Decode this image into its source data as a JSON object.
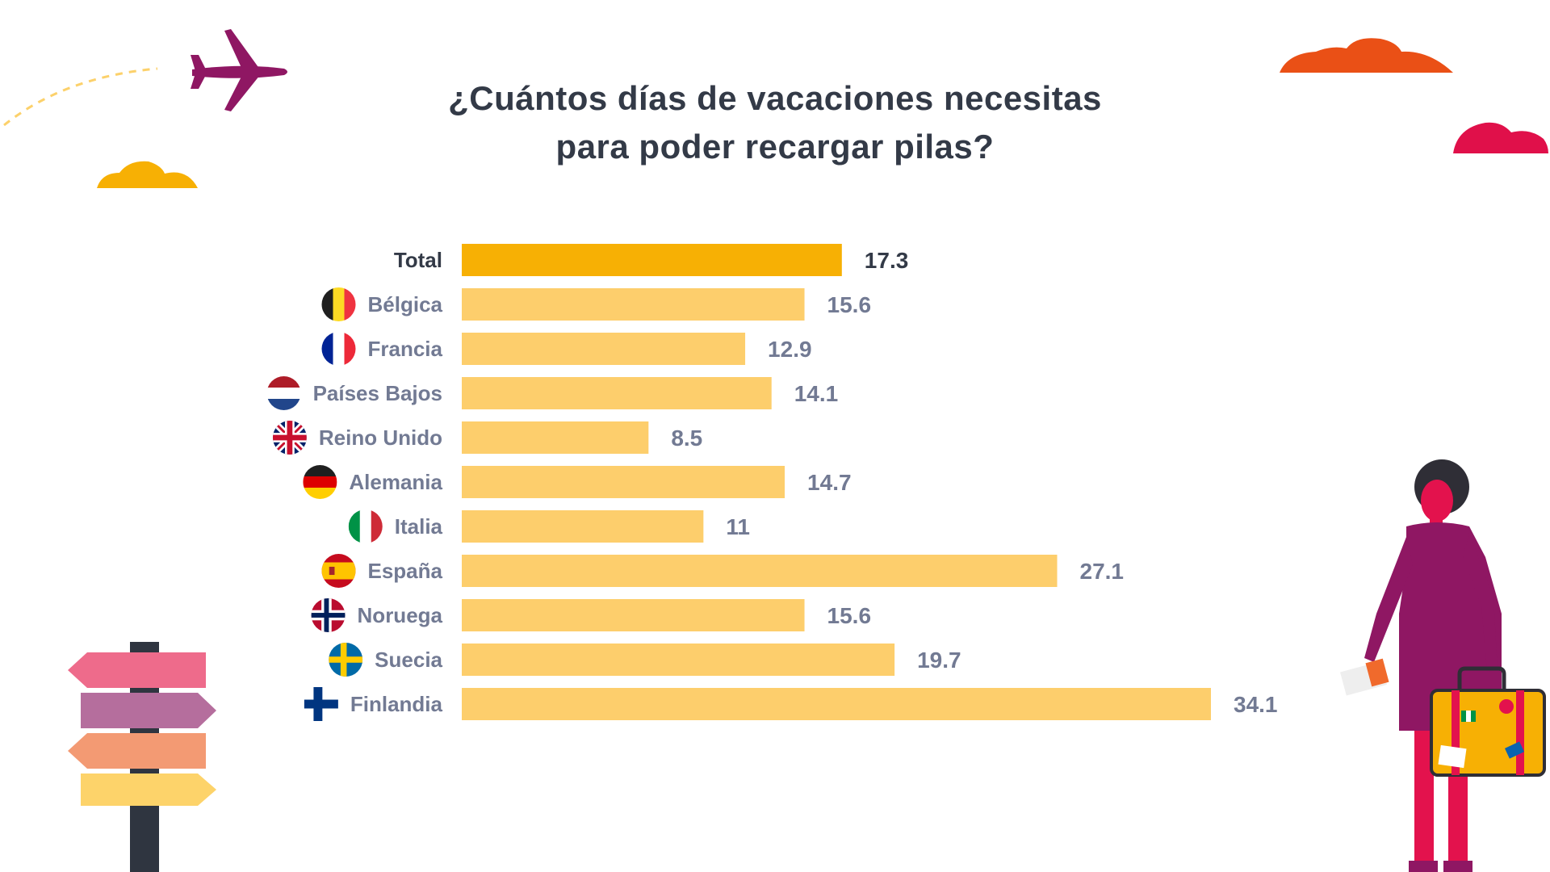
{
  "chart_data": {
    "type": "bar",
    "orientation": "horizontal",
    "title": "¿Cuántos días de vacaciones necesitas para poder recargar pilas?",
    "title_lines": [
      "¿Cuántos días de vacaciones necesitas",
      "para poder recargar pilas?"
    ],
    "categories": [
      "Total",
      "Bélgica",
      "Francia",
      "Países Bajos",
      "Reino Unido",
      "Alemania",
      "Italia",
      "España",
      "Noruega",
      "Suecia",
      "Finlandia"
    ],
    "values": [
      17.3,
      15.6,
      12.9,
      14.1,
      8.5,
      14.7,
      11,
      27.1,
      15.6,
      19.7,
      34.1
    ],
    "value_labels": [
      "17.3",
      "15.6",
      "12.9",
      "14.1",
      "8.5",
      "14.7",
      "11",
      "27.1",
      "15.6",
      "19.7",
      "34.1"
    ],
    "flag_icons": [
      "",
      "belgium-flag-icon",
      "france-flag-icon",
      "netherlands-flag-icon",
      "uk-flag-icon",
      "germany-flag-icon",
      "italy-flag-icon",
      "spain-flag-icon",
      "norway-flag-icon",
      "sweden-flag-icon",
      "finland-flag-icon"
    ],
    "xlim": [
      0,
      34.1
    ],
    "grid": false,
    "legend": "none",
    "colors": {
      "highlight_bar": "#f7b004",
      "bar": "#fdce6c",
      "highlight_label": "#333a47",
      "label": "#727a93"
    }
  },
  "decorations": [
    "airplane-icon",
    "cloud-icon",
    "signpost-icon",
    "traveler-with-suitcase-icon"
  ]
}
